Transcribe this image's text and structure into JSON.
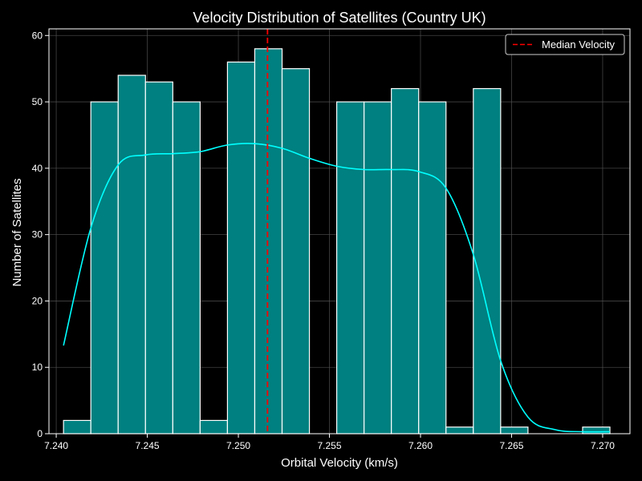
{
  "chart_data": {
    "type": "bar",
    "title": "Velocity Distribution of Satellites (Country UK)",
    "xlabel": "Orbital Velocity (km/s)",
    "ylabel": "Number of Satellites",
    "xlim": [
      7.2396,
      7.2715
    ],
    "ylim": [
      0,
      61
    ],
    "x_ticks": [
      7.24,
      7.245,
      7.25,
      7.255,
      7.26,
      7.265,
      7.27
    ],
    "x_tick_labels": [
      "7.240",
      "7.245",
      "7.250",
      "7.255",
      "7.260",
      "7.265",
      "7.270"
    ],
    "y_ticks": [
      0,
      10,
      20,
      30,
      40,
      50,
      60
    ],
    "y_tick_labels": [
      "0",
      "10",
      "20",
      "30",
      "40",
      "50",
      "60"
    ],
    "grid": true,
    "legend_position": "top-right",
    "bins": {
      "edges": [
        7.2404,
        7.2419,
        7.2434,
        7.2449,
        7.2464,
        7.2479,
        7.2494,
        7.2509,
        7.2524,
        7.2539,
        7.2554,
        7.2569,
        7.2584,
        7.2599,
        7.2614,
        7.2629,
        7.2644,
        7.2659,
        7.2674,
        7.2689,
        7.2704
      ],
      "counts": [
        2,
        50,
        54,
        53,
        50,
        2,
        56,
        58,
        55,
        0,
        50,
        50,
        52,
        50,
        1,
        52,
        1,
        0,
        0,
        1
      ]
    },
    "kde": {
      "x": [
        7.2404,
        7.2419,
        7.2434,
        7.2449,
        7.2464,
        7.2479,
        7.2494,
        7.2509,
        7.2524,
        7.2539,
        7.2554,
        7.2569,
        7.2584,
        7.2599,
        7.2614,
        7.2629,
        7.2644,
        7.2659,
        7.2674,
        7.2689,
        7.2704
      ],
      "y": [
        13.3,
        31,
        40.5,
        42,
        42.2,
        42.5,
        43.5,
        43.7,
        43,
        41.5,
        40.3,
        39.8,
        39.8,
        39.5,
        37,
        27,
        11,
        2.5,
        0.6,
        0.3,
        0.3
      ]
    },
    "median": 7.2516,
    "legend": [
      "Median Velocity"
    ],
    "colors": {
      "background": "#000000",
      "bar_fill": "#008080",
      "bar_edge": "#ffffff",
      "kde_line": "#00ffff",
      "median_line": "#ff0000",
      "axis": "#ffffff",
      "grid": "#555555"
    }
  }
}
